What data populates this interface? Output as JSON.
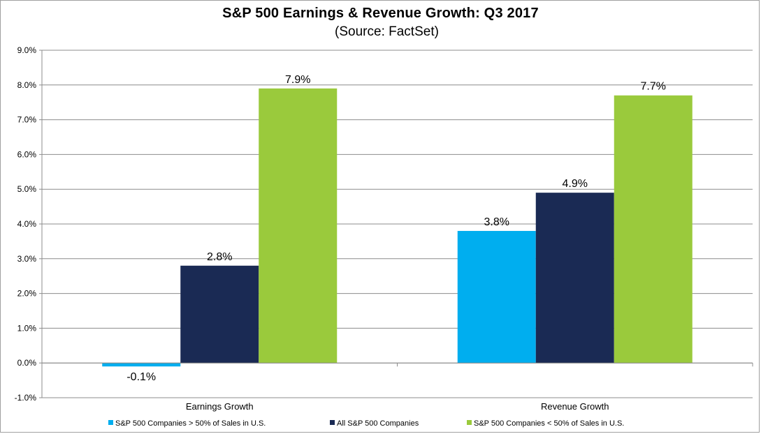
{
  "title": "S&P 500 Earnings & Revenue Growth:  Q3 2017",
  "subtitle": "(Source: FactSet)",
  "chart_data": {
    "type": "bar",
    "title": "S&P 500 Earnings & Revenue Growth:  Q3 2017",
    "subtitle": "(Source: FactSet)",
    "categories": [
      "Earnings Growth",
      "Revenue Growth"
    ],
    "series": [
      {
        "name": "S&P 500 Companies > 50% of Sales in U.S.",
        "values": [
          -0.1,
          3.8
        ],
        "labels": [
          "-0.1%",
          "3.8%"
        ],
        "color": "#00aeef"
      },
      {
        "name": "All S&P 500 Companies",
        "values": [
          2.8,
          4.9
        ],
        "labels": [
          "2.8%",
          "4.9%"
        ],
        "color": "#1a2a54"
      },
      {
        "name": "S&P 500 Companies < 50% of Sales in U.S.",
        "values": [
          7.9,
          7.7
        ],
        "labels": [
          "7.9%",
          "7.7%"
        ],
        "color": "#9aca3c"
      }
    ],
    "y_ticks": [
      "-1.0%",
      "0.0%",
      "1.0%",
      "2.0%",
      "3.0%",
      "4.0%",
      "5.0%",
      "6.0%",
      "7.0%",
      "8.0%",
      "9.0%"
    ],
    "ylim": [
      -1.0,
      9.0
    ],
    "xlabel": "",
    "ylabel": "",
    "grid": true,
    "legend_position": "bottom"
  }
}
